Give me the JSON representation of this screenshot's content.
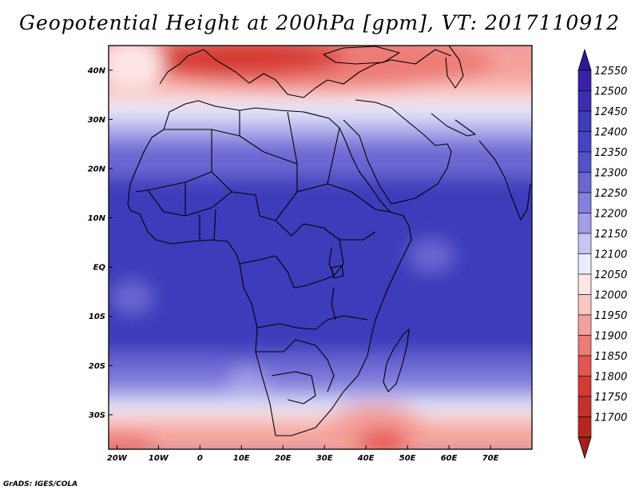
{
  "title": "Geopotential Height at 200hPa [gpm], VT: 2017110912",
  "credit": "GrADS: IGES/COLA",
  "map": {
    "lon_range": [
      -22,
      80
    ],
    "lat_range": [
      -37,
      45
    ],
    "lon_ticks": [
      {
        "lon": -20,
        "label": "20W"
      },
      {
        "lon": -10,
        "label": "10W"
      },
      {
        "lon": 0,
        "label": "0"
      },
      {
        "lon": 10,
        "label": "10E"
      },
      {
        "lon": 20,
        "label": "20E"
      },
      {
        "lon": 30,
        "label": "30E"
      },
      {
        "lon": 40,
        "label": "40E"
      },
      {
        "lon": 50,
        "label": "50E"
      },
      {
        "lon": 60,
        "label": "60E"
      },
      {
        "lon": 70,
        "label": "70E"
      }
    ],
    "lat_ticks": [
      {
        "lat": 40,
        "label": "40N"
      },
      {
        "lat": 30,
        "label": "30N"
      },
      {
        "lat": 20,
        "label": "20N"
      },
      {
        "lat": 10,
        "label": "10N"
      },
      {
        "lat": 0,
        "label": "EQ"
      },
      {
        "lat": -10,
        "label": "10S"
      },
      {
        "lat": -20,
        "label": "20S"
      },
      {
        "lat": -30,
        "label": "30S"
      }
    ]
  },
  "colorbar": {
    "labels": [
      "12550",
      "12500",
      "12450",
      "12400",
      "12350",
      "12300",
      "12250",
      "12200",
      "12150",
      "12100",
      "12050",
      "12000",
      "11950",
      "11900",
      "11850",
      "11800",
      "11750",
      "11700"
    ],
    "colors": [
      "#3a22a8",
      "#3b2eb0",
      "#3e3cba",
      "#4445c2",
      "#5452c8",
      "#6a66d2",
      "#8580dc",
      "#a29fe6",
      "#c6c6f2",
      "#ecedfb",
      "#fde6e4",
      "#f9c6c2",
      "#f4a19b",
      "#ed7b74",
      "#e45550",
      "#d63a33",
      "#c7302a",
      "#b8251f"
    ],
    "top_color": "#30189a",
    "bottom_color": "#a51e19"
  }
}
